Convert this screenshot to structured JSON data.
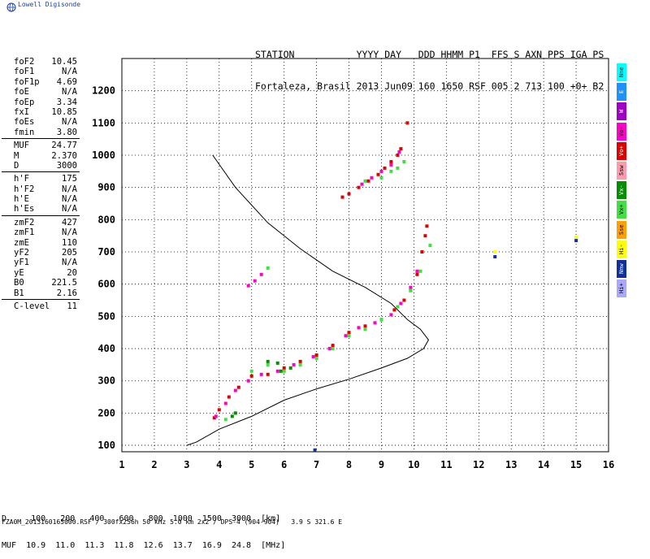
{
  "logo": {
    "text": "Lowell Digisonde",
    "icon": "globe-icon"
  },
  "header": {
    "line1": "STATION           YYYY DAY   DDD HHMM P1  FFS S AXN PPS IGA PS",
    "line2": "Fortaleza, Brasil 2013 Jun09 160 1650 RSF 005 2 713 100 +0+ B2"
  },
  "params": {
    "group1": [
      {
        "label": "foF2",
        "value": "10.45"
      },
      {
        "label": "foF1",
        "value": "N/A"
      },
      {
        "label": "foF1p",
        "value": "4.69"
      },
      {
        "label": "foE",
        "value": "N/A"
      },
      {
        "label": "foEp",
        "value": "3.34"
      },
      {
        "label": "fxI",
        "value": "10.85"
      },
      {
        "label": "foEs",
        "value": "N/A"
      },
      {
        "label": "fmin",
        "value": "3.80"
      }
    ],
    "group2": [
      {
        "label": "MUF",
        "value": "24.77"
      },
      {
        "label": "M",
        "value": "2.370"
      },
      {
        "label": "D",
        "value": "3000"
      }
    ],
    "group3": [
      {
        "label": "h'F",
        "value": "175"
      },
      {
        "label": "h'F2",
        "value": "N/A"
      },
      {
        "label": "h'E",
        "value": "N/A"
      },
      {
        "label": "h'Es",
        "value": "N/A"
      }
    ],
    "group4": [
      {
        "label": "zmF2",
        "value": "427"
      },
      {
        "label": "zmF1",
        "value": "N/A"
      },
      {
        "label": "zmE",
        "value": "110"
      },
      {
        "label": "yF2",
        "value": "205"
      },
      {
        "label": "yF1",
        "value": "N/A"
      },
      {
        "label": "yE",
        "value": "20"
      },
      {
        "label": "B0",
        "value": "221.5"
      },
      {
        "label": "B1",
        "value": "2.16"
      }
    ],
    "group5": [
      {
        "label": "C-level",
        "value": "11"
      }
    ]
  },
  "muf_table": {
    "row_d": "D     100   200   400   600   800  1000  1500  3000  [km]",
    "row_muf": "MUF  10.9  11.0  11.3  11.8  12.6  13.7  16.9  24.8  [MHz]"
  },
  "file_line": "FZA0M_2013160165000.RSF / 300fx256h 50 kHz 5.0 km 2x2 / DPS-4 (904-904)   3.9 S 321.6 E",
  "legend": [
    {
      "label": "Nne",
      "color": "#00ffff"
    },
    {
      "label": "E",
      "color": "#1e90ff"
    },
    {
      "label": "W",
      "color": "#a000c8"
    },
    {
      "label": "Vo-",
      "color": "#ff00c8"
    },
    {
      "label": "Vo+",
      "color": "#e00000"
    },
    {
      "label": "Ssw",
      "color": "#ff9aaa"
    },
    {
      "label": "Vx-",
      "color": "#009000"
    },
    {
      "label": "Vx+",
      "color": "#40e040"
    },
    {
      "label": "Sse",
      "color": "#ffa000"
    },
    {
      "label": "Hi-",
      "color": "#ffff00"
    },
    {
      "label": "Nnw",
      "color": "#1030a0"
    },
    {
      "label": "Hi+",
      "color": "#a8a8ff"
    }
  ],
  "chart_data": {
    "type": "scatter",
    "xlim": [
      1,
      16
    ],
    "ylim": [
      80,
      1300
    ],
    "x_ticks": [
      1,
      2,
      3,
      4,
      5,
      6,
      7,
      8,
      9,
      10,
      11,
      12,
      13,
      14,
      15,
      16
    ],
    "y_ticks": [
      100,
      200,
      300,
      400,
      500,
      600,
      700,
      800,
      900,
      1000,
      1100,
      1200
    ],
    "grid": true,
    "series": [
      {
        "color": "#000000",
        "style": "line",
        "points": [
          [
            3.8,
            1000
          ],
          [
            4.5,
            900
          ],
          [
            5.5,
            790
          ],
          [
            6.5,
            710
          ],
          [
            7.5,
            640
          ],
          [
            8.5,
            590
          ],
          [
            9.3,
            540
          ],
          [
            9.8,
            490
          ],
          [
            10.2,
            460
          ],
          [
            10.45,
            427
          ],
          [
            10.3,
            400
          ],
          [
            9.8,
            370
          ],
          [
            9.0,
            340
          ],
          [
            8.0,
            305
          ],
          [
            7.0,
            275
          ],
          [
            6.0,
            240
          ],
          [
            5.0,
            190
          ],
          [
            4.0,
            150
          ],
          [
            3.3,
            110
          ],
          [
            3.0,
            100
          ]
        ]
      },
      {
        "color": "#e00000",
        "style": "trace",
        "points": [
          [
            3.85,
            185
          ],
          [
            4.0,
            210
          ],
          [
            4.3,
            250
          ],
          [
            4.6,
            280
          ],
          [
            5.0,
            315
          ],
          [
            5.5,
            320
          ],
          [
            6.0,
            340
          ],
          [
            6.5,
            360
          ],
          [
            7.0,
            380
          ],
          [
            7.5,
            410
          ],
          [
            8.0,
            450
          ],
          [
            8.5,
            470
          ],
          [
            9.0,
            490
          ],
          [
            9.4,
            520
          ],
          [
            9.7,
            550
          ],
          [
            9.9,
            580
          ],
          [
            10.1,
            630
          ],
          [
            10.25,
            700
          ],
          [
            10.35,
            750
          ],
          [
            10.4,
            780
          ]
        ]
      },
      {
        "color": "#ff00c8",
        "style": "trace",
        "points": [
          [
            3.9,
            190
          ],
          [
            4.2,
            230
          ],
          [
            4.5,
            270
          ],
          [
            4.9,
            300
          ],
          [
            5.3,
            320
          ],
          [
            5.8,
            330
          ],
          [
            6.3,
            350
          ],
          [
            6.9,
            375
          ],
          [
            7.4,
            400
          ],
          [
            7.9,
            440
          ],
          [
            8.3,
            465
          ],
          [
            8.8,
            480
          ],
          [
            9.3,
            505
          ],
          [
            9.6,
            540
          ],
          [
            9.9,
            590
          ],
          [
            10.1,
            640
          ]
        ]
      },
      {
        "color": "#40e040",
        "style": "trace",
        "points": [
          [
            4.2,
            180
          ],
          [
            4.5,
            200
          ],
          [
            5.0,
            330
          ],
          [
            5.5,
            350
          ],
          [
            6.0,
            330
          ],
          [
            6.5,
            350
          ],
          [
            7.0,
            370
          ],
          [
            7.5,
            400
          ],
          [
            8.0,
            440
          ],
          [
            8.5,
            460
          ],
          [
            9.0,
            490
          ],
          [
            9.5,
            530
          ],
          [
            9.9,
            580
          ],
          [
            10.2,
            640
          ],
          [
            10.5,
            720
          ]
        ]
      },
      {
        "color": "#009000",
        "style": "trace",
        "points": [
          [
            4.4,
            190
          ],
          [
            4.5,
            200
          ],
          [
            5.5,
            360
          ],
          [
            5.8,
            355
          ],
          [
            5.9,
            330
          ],
          [
            6.2,
            340
          ]
        ]
      },
      {
        "color": "#e00000",
        "style": "trace",
        "points": [
          [
            7.8,
            870
          ],
          [
            8.0,
            880
          ],
          [
            8.3,
            900
          ],
          [
            8.6,
            920
          ],
          [
            8.9,
            940
          ],
          [
            9.1,
            960
          ],
          [
            9.3,
            980
          ],
          [
            9.5,
            1000
          ],
          [
            9.6,
            1020
          ],
          [
            9.8,
            1100
          ]
        ]
      },
      {
        "color": "#ff00c8",
        "style": "trace",
        "points": [
          [
            8.4,
            910
          ],
          [
            8.7,
            930
          ],
          [
            9.0,
            950
          ],
          [
            9.3,
            970
          ],
          [
            9.55,
            1010
          ],
          [
            4.9,
            595
          ],
          [
            5.1,
            610
          ],
          [
            5.3,
            630
          ]
        ]
      },
      {
        "color": "#40e040",
        "style": "trace",
        "points": [
          [
            8.5,
            920
          ],
          [
            9.0,
            930
          ],
          [
            9.3,
            950
          ],
          [
            9.5,
            960
          ],
          [
            9.7,
            980
          ],
          [
            5.5,
            650
          ]
        ]
      },
      {
        "color": "#ffff00",
        "style": "trace",
        "points": [
          [
            12.5,
            700
          ],
          [
            15.0,
            745
          ]
        ]
      },
      {
        "color": "#1030a0",
        "style": "trace",
        "points": [
          [
            12.5,
            685
          ],
          [
            15.0,
            735
          ],
          [
            6.95,
            85
          ]
        ]
      }
    ]
  }
}
